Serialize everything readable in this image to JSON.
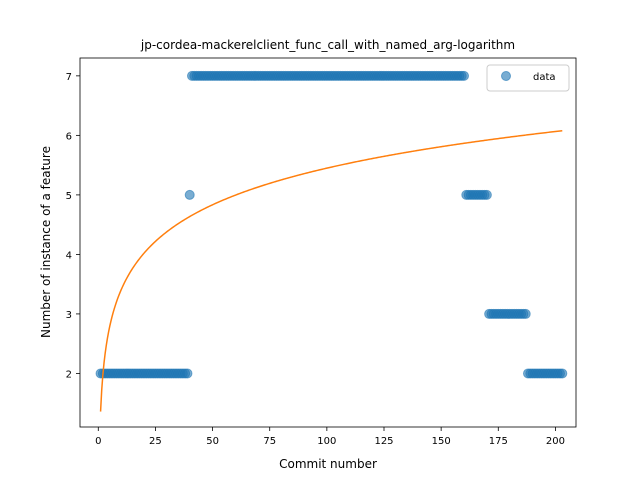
{
  "chart_data": {
    "type": "scatter",
    "title": "jp-cordea-mackerelclient_func_call_with_named_arg-logarithm",
    "xlabel": "Commit number",
    "ylabel": "Number of instance of a feature",
    "xlim": [
      -8,
      209
    ],
    "ylim": [
      1.1,
      7.3
    ],
    "xticks": [
      0,
      25,
      50,
      75,
      100,
      125,
      150,
      175,
      200
    ],
    "yticks": [
      2,
      3,
      4,
      5,
      6,
      7
    ],
    "grid": false,
    "legend": {
      "entries": [
        "data"
      ],
      "placement": "top-right"
    },
    "colors": {
      "data": "#1f77b4",
      "fit": "#ff7f0e"
    },
    "series": [
      {
        "name": "data",
        "kind": "scatter",
        "segments": [
          {
            "x_from": 1,
            "x_to": 39,
            "y": 2
          },
          {
            "x_from": 40,
            "x_to": 40,
            "y": 5
          },
          {
            "x_from": 41,
            "x_to": 160,
            "y": 7
          },
          {
            "x_from": 161,
            "x_to": 170,
            "y": 5
          },
          {
            "x_from": 171,
            "x_to": 187,
            "y": 3
          },
          {
            "x_from": 188,
            "x_to": 203,
            "y": 2
          }
        ]
      },
      {
        "kind": "line",
        "model": "logarithmic",
        "a": 1.36,
        "b": 0.888,
        "x_range": [
          1,
          203
        ]
      }
    ]
  }
}
